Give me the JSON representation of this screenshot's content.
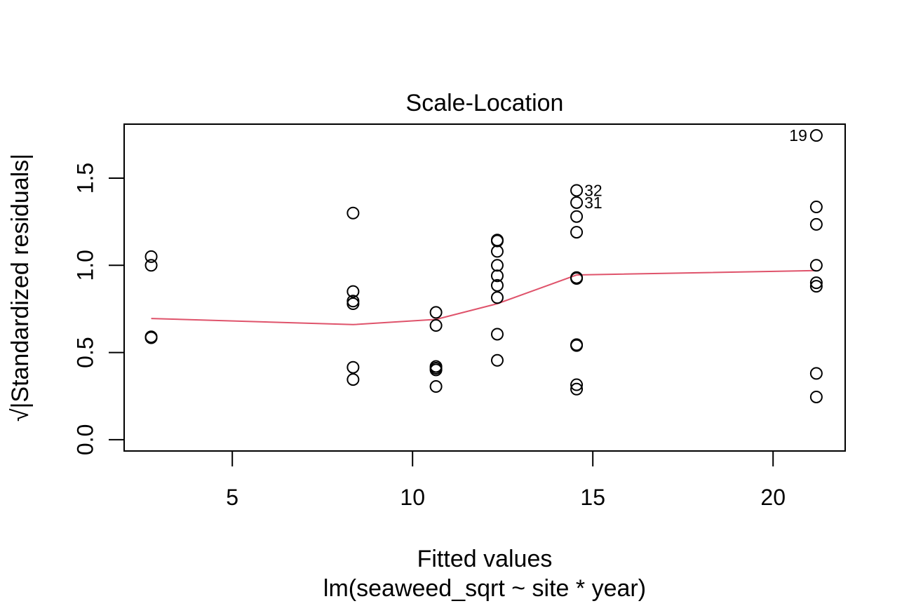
{
  "chart_data": {
    "type": "scatter",
    "title": "Scale-Location",
    "xlabel": "Fitted values",
    "subtitle": "lm(seaweed_sqrt ~ site * year)",
    "ylabel": "√|Standardized residuals|",
    "xlim": [
      2.0,
      22.0
    ],
    "ylim": [
      -0.065,
      1.81
    ],
    "x_ticks": [
      5,
      10,
      15,
      20
    ],
    "y_ticks": [
      0.0,
      0.5,
      1.0,
      1.5
    ],
    "x_tick_labels": [
      "5",
      "10",
      "15",
      "20"
    ],
    "y_tick_labels": [
      "0.0",
      "0.5",
      "1.0",
      "1.5"
    ],
    "grid": false,
    "legend": "none",
    "point_color": "#000000",
    "smooth_color": "#df536b",
    "points": [
      {
        "x": 2.75,
        "y": 1.05
      },
      {
        "x": 2.75,
        "y": 1.0
      },
      {
        "x": 2.75,
        "y": 0.59
      },
      {
        "x": 2.75,
        "y": 0.585
      },
      {
        "x": 8.35,
        "y": 1.3
      },
      {
        "x": 8.35,
        "y": 0.85
      },
      {
        "x": 8.35,
        "y": 0.795
      },
      {
        "x": 8.35,
        "y": 0.78
      },
      {
        "x": 8.35,
        "y": 0.415
      },
      {
        "x": 8.35,
        "y": 0.345
      },
      {
        "x": 10.65,
        "y": 0.73
      },
      {
        "x": 10.65,
        "y": 0.655
      },
      {
        "x": 10.65,
        "y": 0.42
      },
      {
        "x": 10.65,
        "y": 0.41
      },
      {
        "x": 10.65,
        "y": 0.4
      },
      {
        "x": 10.65,
        "y": 0.305
      },
      {
        "x": 12.35,
        "y": 1.145
      },
      {
        "x": 12.35,
        "y": 1.14
      },
      {
        "x": 12.35,
        "y": 1.08
      },
      {
        "x": 12.35,
        "y": 1.0
      },
      {
        "x": 12.35,
        "y": 0.94
      },
      {
        "x": 12.35,
        "y": 0.885
      },
      {
        "x": 12.35,
        "y": 0.815
      },
      {
        "x": 12.35,
        "y": 0.605
      },
      {
        "x": 12.35,
        "y": 0.455
      },
      {
        "x": 14.55,
        "y": 1.43
      },
      {
        "x": 14.55,
        "y": 1.36
      },
      {
        "x": 14.55,
        "y": 1.28
      },
      {
        "x": 14.55,
        "y": 1.19
      },
      {
        "x": 14.55,
        "y": 0.93
      },
      {
        "x": 14.55,
        "y": 0.925
      },
      {
        "x": 14.55,
        "y": 0.545
      },
      {
        "x": 14.55,
        "y": 0.54
      },
      {
        "x": 14.55,
        "y": 0.315
      },
      {
        "x": 14.55,
        "y": 0.29
      },
      {
        "x": 21.2,
        "y": 1.745
      },
      {
        "x": 21.2,
        "y": 1.335
      },
      {
        "x": 21.2,
        "y": 1.235
      },
      {
        "x": 21.2,
        "y": 1.0
      },
      {
        "x": 21.2,
        "y": 0.9
      },
      {
        "x": 21.2,
        "y": 0.88
      },
      {
        "x": 21.2,
        "y": 0.38
      },
      {
        "x": 21.2,
        "y": 0.245
      }
    ],
    "annotations": [
      {
        "label": "19",
        "x": 21.2,
        "y": 1.745,
        "side": "left"
      },
      {
        "label": "32",
        "x": 14.55,
        "y": 1.43,
        "side": "right"
      },
      {
        "label": "31",
        "x": 14.55,
        "y": 1.36,
        "side": "right"
      }
    ],
    "smooth_line": [
      {
        "x": 2.75,
        "y": 0.695
      },
      {
        "x": 8.35,
        "y": 0.66
      },
      {
        "x": 10.65,
        "y": 0.69
      },
      {
        "x": 12.35,
        "y": 0.78
      },
      {
        "x": 14.55,
        "y": 0.945
      },
      {
        "x": 21.2,
        "y": 0.97
      }
    ]
  }
}
